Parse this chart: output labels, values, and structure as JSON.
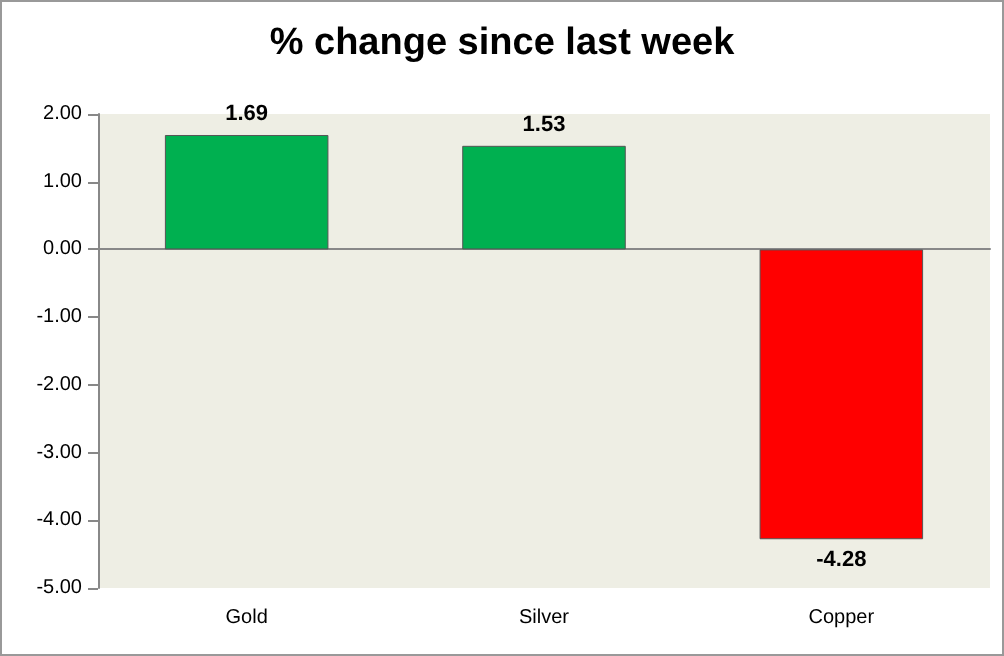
{
  "chart_data": {
    "type": "bar",
    "title": "% change since last week",
    "categories": [
      "Gold",
      "Silver",
      "Copper"
    ],
    "values": [
      1.69,
      1.53,
      -4.28
    ],
    "colors": [
      "#00b050",
      "#00b050",
      "#ff0000"
    ],
    "ylim": [
      -5,
      2
    ],
    "yticks": [
      {
        "value": -5,
        "label": "-5.00"
      },
      {
        "value": -4,
        "label": "-4.00"
      },
      {
        "value": -3,
        "label": "-3.00"
      },
      {
        "value": -2,
        "label": "-2.00"
      },
      {
        "value": -1,
        "label": "-1.00"
      },
      {
        "value": 0,
        "label": "0.00"
      },
      {
        "value": 1,
        "label": "1.00"
      },
      {
        "value": 2,
        "label": "2.00"
      }
    ],
    "data_labels": true
  }
}
